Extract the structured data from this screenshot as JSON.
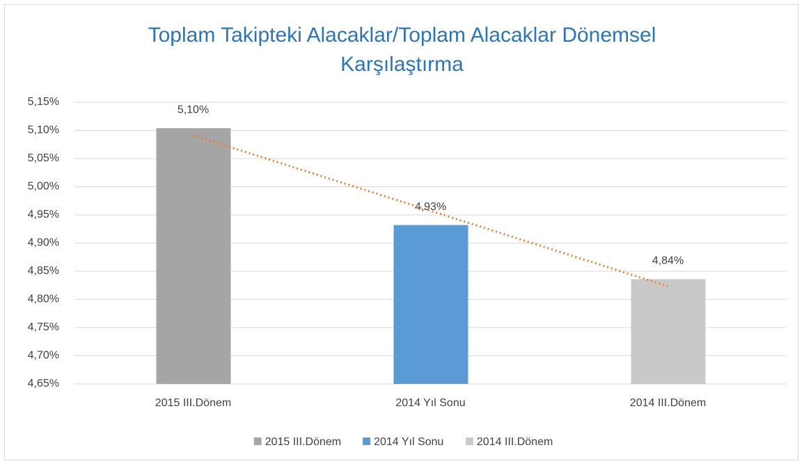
{
  "chart_data": {
    "type": "bar",
    "title": "Toplam Takipteki Alacaklar/Toplam Alacaklar Dönemsel Karşılaştırma",
    "categories": [
      "2015 III.Dönem",
      "2014 Yıl Sonu",
      "2014 III.Dönem"
    ],
    "values": [
      5.104,
      4.932,
      4.836
    ],
    "value_labels": [
      "5,10%",
      "4,93%",
      "4,84%"
    ],
    "colors": [
      "#a5a5a5",
      "#5b9bd5",
      "#c9c9c9"
    ],
    "ylim": [
      4.65,
      5.15
    ],
    "yticks": [
      {
        "value": 4.65,
        "label": "4,65%"
      },
      {
        "value": 4.7,
        "label": "4,70%"
      },
      {
        "value": 4.75,
        "label": "4,75%"
      },
      {
        "value": 4.8,
        "label": "4,80%"
      },
      {
        "value": 4.85,
        "label": "4,85%"
      },
      {
        "value": 4.9,
        "label": "4,90%"
      },
      {
        "value": 4.95,
        "label": "4,95%"
      },
      {
        "value": 5.0,
        "label": "5,00%"
      },
      {
        "value": 5.05,
        "label": "5,05%"
      },
      {
        "value": 5.1,
        "label": "5,10%"
      },
      {
        "value": 5.15,
        "label": "5,15%"
      }
    ],
    "grid": true,
    "legend": "bottom",
    "trendline": {
      "kind": "linear",
      "color": "#ed7d31",
      "style": "dotted"
    }
  }
}
